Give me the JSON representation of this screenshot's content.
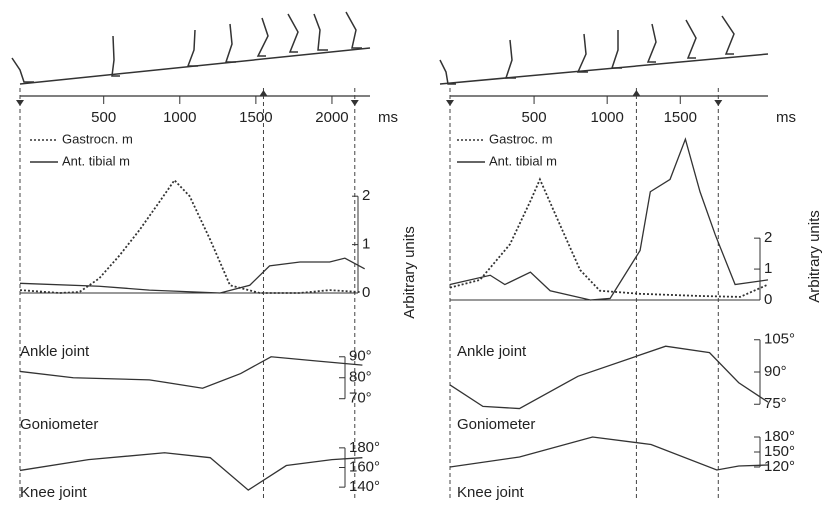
{
  "chart_data": [
    {
      "type": "line",
      "xlim": [
        -50,
        2250
      ],
      "xticks": [
        500,
        1000,
        1500,
        2000
      ],
      "xlabel": "ms",
      "events": [
        -50,
        1550,
        2150
      ],
      "annotation": "Goniometer",
      "subplots": [
        {
          "ylim": [
            0,
            2.5
          ],
          "yticks": [
            0,
            1,
            2
          ],
          "ylabel": "Arbitrary units",
          "series": [
            {
              "name": "Gastrocn. m",
              "color": "#333",
              "dashed": true,
              "x": [
                -50,
                210,
                340,
                470,
                605,
                735,
                870,
                965,
                1065,
                1200,
                1330,
                1525,
                1790,
                1985,
                2185
              ],
              "values": [
                0.06,
                0,
                0.02,
                0.3,
                0.78,
                1.3,
                1.9,
                2.33,
                2.0,
                1.1,
                0.16,
                0,
                0,
                0.06,
                0.02
              ]
            },
            {
              "name": "Ant. tibial m",
              "color": "#333",
              "dashed": false,
              "x": [
                -50,
                470,
                800,
                1265,
                1460,
                1590,
                1790,
                1985,
                2085,
                2215
              ],
              "values": [
                0.2,
                0.14,
                0.06,
                0,
                0.16,
                0.56,
                0.64,
                0.64,
                0.72,
                0.5
              ]
            }
          ]
        },
        {
          "label": "Ankle joint",
          "ylim": [
            67,
            98
          ],
          "yticks": [
            {
              "value": 70,
              "label": "70°"
            },
            {
              "value": 80,
              "label": "80°"
            },
            {
              "value": 90,
              "label": "90°"
            }
          ],
          "series": [
            {
              "color": "#333",
              "x": [
                -50,
                300,
                800,
                1150,
                1400,
                1600,
                1900,
                2200
              ],
              "values": [
                83,
                80,
                79,
                75,
                82,
                90,
                88,
                86
              ]
            }
          ]
        },
        {
          "label": "Knee joint",
          "ylim": [
            132,
            188
          ],
          "yticks": [
            {
              "value": 140,
              "label": "140°"
            },
            {
              "value": 160,
              "label": "160°"
            },
            {
              "value": 180,
              "label": "180°"
            }
          ],
          "series": [
            {
              "color": "#333",
              "x": [
                -50,
                400,
                900,
                1200,
                1450,
                1700,
                2000,
                2200
              ],
              "values": [
                157,
                168,
                175,
                170,
                137,
                162,
                168,
                170
              ]
            }
          ]
        }
      ]
    },
    {
      "type": "line",
      "xlim": [
        -75,
        2100
      ],
      "xticks": [
        500,
        1000,
        1500
      ],
      "xlabel": "ms",
      "events": [
        -75,
        1200,
        1760
      ],
      "annotation": "Goniometer",
      "subplots": [
        {
          "ylim": [
            0,
            5.4
          ],
          "yticks": [
            0,
            1,
            2
          ],
          "ylabel": "Arbitrary units",
          "series": [
            {
              "name": "Gastroc. m",
              "color": "#333",
              "dashed": true,
              "x": [
                -75,
                130,
                335,
                475,
                540,
                680,
                815,
                950,
                1225,
                1635,
                1910,
                2100
              ],
              "values": [
                0.4,
                0.65,
                1.8,
                3.2,
                3.9,
                2.4,
                0.97,
                0.3,
                0.2,
                0.13,
                0.1,
                0.5
              ]
            },
            {
              "name": "Ant. tibial m",
              "color": "#333",
              "dashed": false,
              "x": [
                -75,
                200,
                300,
                475,
                610,
                885,
                1020,
                1225,
                1295,
                1430,
                1535,
                1635,
                1740,
                1875,
                2100
              ],
              "values": [
                0.5,
                0.8,
                0.5,
                0.9,
                0.3,
                0,
                0.05,
                1.6,
                3.5,
                3.9,
                5.2,
                3.5,
                2.1,
                0.5,
                0.65
              ]
            }
          ]
        },
        {
          "label": "Ankle joint",
          "ylim": [
            70,
            110
          ],
          "yticks": [
            {
              "value": 75,
              "label": "75°"
            },
            {
              "value": 90,
              "label": "90°"
            },
            {
              "value": 105,
              "label": "105°"
            }
          ],
          "series": [
            {
              "color": "#333",
              "x": [
                -75,
                150,
                400,
                800,
                1400,
                1700,
                1900,
                2100
              ],
              "values": [
                84,
                74,
                73,
                88,
                102,
                99,
                85,
                76
              ]
            }
          ]
        },
        {
          "label": "Knee joint",
          "ylim": [
            104,
            194
          ],
          "yticks": [
            {
              "value": 120,
              "label": "120°"
            },
            {
              "value": 150,
              "label": "150°"
            },
            {
              "value": 180,
              "label": "180°"
            }
          ],
          "series": [
            {
              "color": "#333",
              "x": [
                -75,
                400,
                900,
                1300,
                1750,
                1900,
                2100
              ],
              "values": [
                120,
                140,
                180,
                165,
                114,
                122,
                124
              ]
            }
          ]
        }
      ]
    }
  ]
}
